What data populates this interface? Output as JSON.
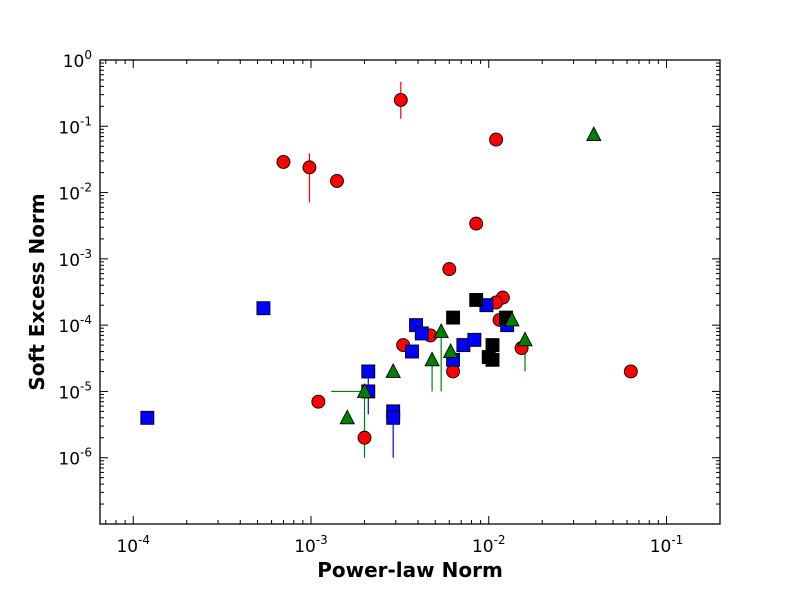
{
  "chart_data": {
    "type": "scatter",
    "xlabel": "Power-law Norm",
    "ylabel": "Soft Excess Norm",
    "xscale": "log",
    "yscale": "log",
    "xlim": [
      6.5e-05,
      0.2
    ],
    "ylim": [
      1e-07,
      1
    ],
    "grid": false,
    "x_ticks": [
      {
        "base": "10",
        "exp": "-4",
        "value": 0.0001
      },
      {
        "base": "10",
        "exp": "-3",
        "value": 0.001
      },
      {
        "base": "10",
        "exp": "-2",
        "value": 0.01
      },
      {
        "base": "10",
        "exp": "-1",
        "value": 0.1
      }
    ],
    "y_ticks": [
      {
        "base": "10",
        "exp": "-6",
        "value": 1e-06
      },
      {
        "base": "10",
        "exp": "-5",
        "value": 1e-05
      },
      {
        "base": "10",
        "exp": "-4",
        "value": 0.0001
      },
      {
        "base": "10",
        "exp": "-3",
        "value": 0.001
      },
      {
        "base": "10",
        "exp": "-2",
        "value": 0.01
      },
      {
        "base": "10",
        "exp": "-1",
        "value": 0.1
      },
      {
        "base": "10",
        "exp": "0",
        "value": 1
      }
    ],
    "series": [
      {
        "marker": "circle",
        "color": "#ff0000",
        "points": [
          {
            "x": 0.0032,
            "y": 0.25,
            "ylo": 0.13,
            "yhi": 0.47
          },
          {
            "x": 0.0007,
            "y": 0.029
          },
          {
            "x": 0.00098,
            "y": 0.024,
            "ylo": 0.0071,
            "yhi": 0.039
          },
          {
            "x": 0.0014,
            "y": 0.015
          },
          {
            "x": 0.011,
            "y": 0.063
          },
          {
            "x": 0.0085,
            "y": 0.0034
          },
          {
            "x": 0.006,
            "y": 0.0007
          },
          {
            "x": 0.012,
            "y": 0.00026
          },
          {
            "x": 0.011,
            "y": 0.00022
          },
          {
            "x": 0.0115,
            "y": 0.00012
          },
          {
            "x": 0.0047,
            "y": 7e-05
          },
          {
            "x": 0.0033,
            "y": 5e-05
          },
          {
            "x": 0.0153,
            "y": 4.5e-05
          },
          {
            "x": 0.0063,
            "y": 2e-05
          },
          {
            "x": 0.063,
            "y": 2e-05
          },
          {
            "x": 0.0011,
            "y": 7e-06
          },
          {
            "x": 0.002,
            "y": 2e-06
          }
        ]
      },
      {
        "marker": "square",
        "color": "#0000ff",
        "points": [
          {
            "x": 0.00012,
            "y": 4e-06
          },
          {
            "x": 0.00054,
            "y": 0.00018
          },
          {
            "x": 0.0021,
            "y": 2e-05,
            "ylo": 4.5e-06
          },
          {
            "x": 0.0021,
            "y": 1e-05
          },
          {
            "x": 0.0029,
            "y": 5e-06
          },
          {
            "x": 0.0029,
            "y": 4e-06,
            "ylo": 1e-06
          },
          {
            "x": 0.0039,
            "y": 0.0001
          },
          {
            "x": 0.0042,
            "y": 7.5e-05
          },
          {
            "x": 0.0037,
            "y": 4e-05
          },
          {
            "x": 0.0063,
            "y": 3e-05
          },
          {
            "x": 0.0072,
            "y": 5e-05
          },
          {
            "x": 0.0083,
            "y": 6e-05
          },
          {
            "x": 0.0097,
            "y": 0.0002
          },
          {
            "x": 0.0127,
            "y": 0.0001
          }
        ]
      },
      {
        "marker": "square",
        "color": "#000000",
        "points": [
          {
            "x": 0.0085,
            "y": 0.00024
          },
          {
            "x": 0.0063,
            "y": 0.00013
          },
          {
            "x": 0.0125,
            "y": 0.00013
          },
          {
            "x": 0.0105,
            "y": 5e-05
          },
          {
            "x": 0.01,
            "y": 3.3e-05
          },
          {
            "x": 0.0105,
            "y": 3e-05
          }
        ]
      },
      {
        "marker": "triangle",
        "color": "#008000",
        "points": [
          {
            "x": 0.039,
            "y": 0.075
          },
          {
            "x": 0.0054,
            "y": 8e-05,
            "ylo": 1e-05
          },
          {
            "x": 0.0061,
            "y": 4e-05
          },
          {
            "x": 0.0048,
            "y": 3e-05,
            "ylo": 1e-05
          },
          {
            "x": 0.0029,
            "y": 2e-05
          },
          {
            "x": 0.002,
            "y": 1e-05,
            "ylo": 1e-06,
            "xlo": 0.0013
          },
          {
            "x": 0.0016,
            "y": 4e-06
          },
          {
            "x": 0.0135,
            "y": 0.00012
          },
          {
            "x": 0.016,
            "y": 6e-05,
            "ylo": 2e-05
          }
        ]
      }
    ]
  }
}
